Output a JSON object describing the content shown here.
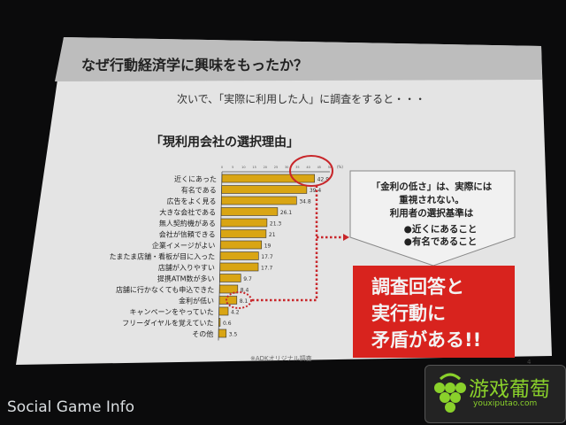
{
  "slide": {
    "title": "なぜ行動経済学に興味をもったか？",
    "subtitle": "次いで、「実際に利用した人」に調査をすると・・・",
    "chart_title": "「現利用会社の選択理由」",
    "source": "※ADKオリジナル調査",
    "page_number": "4"
  },
  "callout": {
    "line1": "「金利の低さ」は、実際には",
    "line2": "重視されない。",
    "line3": "利用者の選択基準は",
    "bullet1": "●近くにあること",
    "bullet2": "●有名であること"
  },
  "conclusion": {
    "line1": "調査回答と",
    "line2": "実行動に",
    "line3": "矛盾がある!!"
  },
  "watermarks": {
    "left": "Social Game Info",
    "right_cn": "游戏葡萄",
    "right_url": "youxiputao.com"
  },
  "colors": {
    "bar": "#d9a514",
    "highlight": "#c8262a",
    "conclusion_bg": "#d8231e"
  },
  "chart_data": {
    "type": "bar",
    "orientation": "horizontal",
    "title": "「現利用会社の選択理由」",
    "unit_label": "(%)",
    "xlim": [
      0,
      50
    ],
    "ticks": [
      0,
      5,
      10,
      15,
      20,
      25,
      30,
      35,
      40,
      45,
      50
    ],
    "categories": [
      "近くにあった",
      "有名である",
      "広告をよく見る",
      "大きな会社である",
      "無人契約機がある",
      "会社が信頼できる",
      "企業イメージがよい",
      "たまたま店舗・看板が目に入った",
      "店舗が入りやすい",
      "提携ATM数が多い",
      "店舗に行かなくても申込できた",
      "金利が低い",
      "キャンペーンをやっていた",
      "フリーダイヤルを覚えていた",
      "その他"
    ],
    "values": [
      42.9,
      39.4,
      34.8,
      26.1,
      21.3,
      21,
      19,
      17.7,
      17.7,
      9.7,
      8.4,
      8.1,
      4.2,
      0.6,
      3.5
    ],
    "highlighted": [
      "近くにあった",
      "有名である",
      "金利が低い"
    ]
  }
}
